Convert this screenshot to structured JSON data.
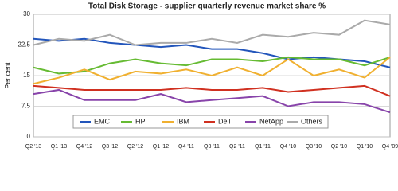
{
  "chart_data": {
    "type": "line",
    "title": "Total Disk Storage - supplier quarterly revenue market share %",
    "y_label": "Per cent",
    "categories": [
      "Q2 '13",
      "Q1 '13",
      "Q4 '12",
      "Q3 '12",
      "Q2 '12",
      "Q1 '12",
      "Q4 '11",
      "Q3 '11",
      "Q2 '11",
      "Q1 '11",
      "Q4 '10",
      "Q3 '10",
      "Q2 '10",
      "Q1 '10",
      "Q4 '09"
    ],
    "series": [
      {
        "name": "EMC",
        "color": "#2255bb",
        "values": [
          24,
          23.5,
          24,
          23,
          22.5,
          22,
          22.5,
          21.5,
          21.5,
          20.5,
          19,
          19.5,
          19,
          18.5,
          17
        ]
      },
      {
        "name": "HP",
        "color": "#66bb33",
        "values": [
          17,
          15.5,
          16,
          18,
          19,
          18,
          17.5,
          19,
          19,
          18.5,
          19.5,
          19,
          19,
          17.5,
          19.5
        ]
      },
      {
        "name": "IBM",
        "color": "#f0b030",
        "values": [
          13,
          14.5,
          16.5,
          14,
          16,
          15.5,
          16.5,
          15,
          17,
          15,
          19,
          15,
          16.5,
          14.5,
          19.5
        ]
      },
      {
        "name": "Dell",
        "color": "#d03020",
        "values": [
          12.5,
          12,
          11.5,
          11.5,
          11.5,
          11.5,
          12,
          11.5,
          11.5,
          12,
          11,
          11.5,
          12,
          12.5,
          10
        ]
      },
      {
        "name": "NetApp",
        "color": "#8844aa",
        "values": [
          10.5,
          11.5,
          9,
          9,
          9,
          10.5,
          8.5,
          9,
          9.5,
          10,
          7.5,
          8.5,
          8.5,
          8,
          6
        ]
      },
      {
        "name": "Others",
        "color": "#aaaaaa",
        "values": [
          22.5,
          24,
          23.5,
          25,
          22.5,
          23,
          23,
          24,
          23,
          25,
          24.5,
          25.5,
          25,
          28.5,
          27.5
        ]
      }
    ],
    "ylim": [
      0,
      30
    ],
    "yticks": [
      0,
      7.5,
      15,
      22.5,
      30
    ],
    "grid": true
  }
}
